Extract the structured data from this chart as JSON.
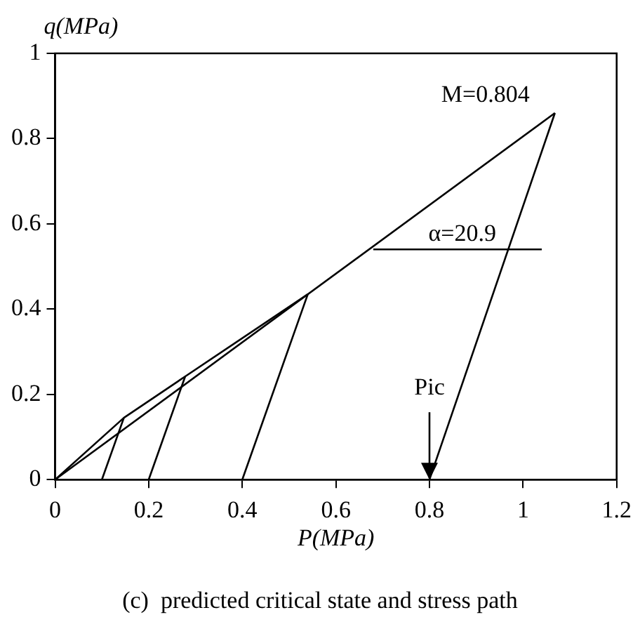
{
  "chart_data": {
    "type": "line",
    "xlabel": "P(MPa)",
    "ylabel": "q(MPa)",
    "xlim": [
      0,
      1.2
    ],
    "xticks": [
      0,
      0.2,
      0.4,
      0.6,
      0.8,
      1,
      1.2
    ],
    "ylim": [
      0,
      1
    ],
    "yticks": [
      0,
      0.2,
      0.4,
      0.6,
      0.8,
      1
    ],
    "grid": false,
    "legend": false,
    "marker": "none",
    "line_style": "solid",
    "series": [
      {
        "color": "#000000",
        "x": [
          0,
          1.068
        ],
        "values": [
          0,
          0.86
        ]
      },
      {
        "color": "#000000",
        "x": [
          0,
          0.147,
          0.278,
          0.54
        ],
        "values": [
          0,
          0.145,
          0.242,
          0.435
        ]
      },
      {
        "color": "#000000",
        "x": [
          0.1,
          0.147
        ],
        "values": [
          0,
          0.145
        ]
      },
      {
        "color": "#000000",
        "x": [
          0.2,
          0.278
        ],
        "values": [
          0,
          0.242
        ]
      },
      {
        "color": "#000000",
        "x": [
          0.4,
          0.54
        ],
        "values": [
          0,
          0.435
        ]
      },
      {
        "color": "#000000",
        "x": [
          0.8,
          1.068
        ],
        "values": [
          0,
          0.86
        ]
      },
      {
        "color": "#000000",
        "x": [
          0.68,
          1.04
        ],
        "values": [
          0.54,
          0.54
        ]
      }
    ],
    "annotations": [
      {
        "text": "M=0.804",
        "x": 1.068,
        "y": 0.86
      },
      {
        "text": "α=20.9",
        "x": 0.87,
        "y": 0.54
      },
      {
        "text": "Pic",
        "x": 0.8,
        "y": 0
      }
    ],
    "title": "(c)  predicted critical state and stress path"
  }
}
